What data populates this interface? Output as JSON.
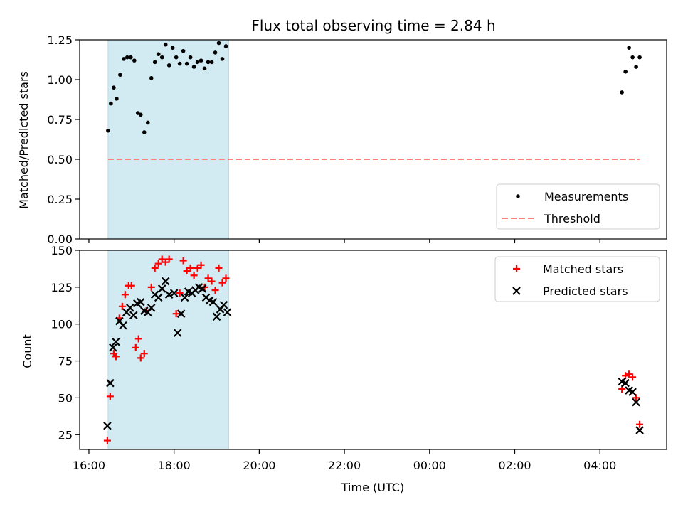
{
  "chart_data": [
    {
      "type": "scatter",
      "title": "Flux total observing time = 2.84 h",
      "xlabel": "",
      "ylabel": "Matched/Predicted stars",
      "ylim": [
        0.0,
        1.25
      ],
      "yticks": [
        "0.00",
        "0.25",
        "0.50",
        "0.75",
        "1.00",
        "1.25"
      ],
      "legend_position": "lower-right",
      "shaded_span": {
        "x_start": "16:27",
        "x_end": "19:17",
        "color": "#add8e6"
      },
      "series": [
        {
          "name": "Measurements",
          "marker": "dot",
          "color": "#000000",
          "points": [
            [
              "16:27",
              0.68
            ],
            [
              "16:31",
              0.85
            ],
            [
              "16:35",
              0.95
            ],
            [
              "16:39",
              0.88
            ],
            [
              "16:44",
              1.03
            ],
            [
              "16:49",
              1.13
            ],
            [
              "16:54",
              1.14
            ],
            [
              "16:59",
              1.14
            ],
            [
              "17:04",
              1.12
            ],
            [
              "17:09",
              0.79
            ],
            [
              "17:13",
              0.78
            ],
            [
              "17:18",
              0.67
            ],
            [
              "17:23",
              0.73
            ],
            [
              "17:28",
              1.01
            ],
            [
              "17:33",
              1.11
            ],
            [
              "17:38",
              1.16
            ],
            [
              "17:43",
              1.14
            ],
            [
              "17:48",
              1.22
            ],
            [
              "17:53",
              1.09
            ],
            [
              "17:58",
              1.2
            ],
            [
              "18:03",
              1.14
            ],
            [
              "18:08",
              1.1
            ],
            [
              "18:13",
              1.18
            ],
            [
              "18:18",
              1.1
            ],
            [
              "18:23",
              1.14
            ],
            [
              "18:28",
              1.08
            ],
            [
              "18:33",
              1.11
            ],
            [
              "18:38",
              1.12
            ],
            [
              "18:43",
              1.07
            ],
            [
              "18:48",
              1.11
            ],
            [
              "18:53",
              1.11
            ],
            [
              "18:58",
              1.17
            ],
            [
              "19:03",
              1.23
            ],
            [
              "19:08",
              1.13
            ],
            [
              "19:13",
              1.21
            ],
            [
              "04:31",
              0.92
            ],
            [
              "04:36",
              1.05
            ],
            [
              "04:41",
              1.2
            ],
            [
              "04:46",
              1.14
            ],
            [
              "04:51",
              1.08
            ],
            [
              "04:56",
              1.14
            ]
          ]
        },
        {
          "name": "Threshold",
          "marker": "dashed-line",
          "color": "#ff7f7f",
          "points": [
            [
              "16:27",
              0.5
            ],
            [
              "04:56",
              0.5
            ]
          ]
        }
      ]
    },
    {
      "type": "scatter",
      "title": "",
      "xlabel": "Time (UTC)",
      "ylabel": "Count",
      "ylim": [
        15,
        150
      ],
      "yticks": [
        "25",
        "50",
        "75",
        "100",
        "125",
        "150"
      ],
      "xticks": [
        "16:00",
        "18:00",
        "20:00",
        "22:00",
        "00:00",
        "02:00",
        "04:00"
      ],
      "legend_position": "upper-right",
      "shaded_span": {
        "x_start": "16:27",
        "x_end": "19:17",
        "color": "#add8e6"
      },
      "series": [
        {
          "name": "Matched stars",
          "marker": "plus",
          "color": "#ff0000",
          "points": [
            [
              "16:26",
              21
            ],
            [
              "16:30",
              51
            ],
            [
              "16:35",
              80
            ],
            [
              "16:38",
              78
            ],
            [
              "16:43",
              104
            ],
            [
              "16:47",
              112
            ],
            [
              "16:51",
              120
            ],
            [
              "16:56",
              126
            ],
            [
              "17:00",
              126
            ],
            [
              "17:06",
              84
            ],
            [
              "17:10",
              90
            ],
            [
              "17:13",
              77
            ],
            [
              "17:18",
              80
            ],
            [
              "17:21",
              109
            ],
            [
              "17:28",
              125
            ],
            [
              "17:33",
              138
            ],
            [
              "17:38",
              141
            ],
            [
              "17:43",
              144
            ],
            [
              "17:48",
              142
            ],
            [
              "17:53",
              144
            ],
            [
              "18:03",
              107
            ],
            [
              "18:08",
              121
            ],
            [
              "18:13",
              143
            ],
            [
              "18:18",
              136
            ],
            [
              "18:23",
              138
            ],
            [
              "18:28",
              133
            ],
            [
              "18:33",
              138
            ],
            [
              "18:38",
              140
            ],
            [
              "18:43",
              125
            ],
            [
              "18:48",
              131
            ],
            [
              "18:53",
              129
            ],
            [
              "18:58",
              123
            ],
            [
              "19:03",
              138
            ],
            [
              "19:08",
              128
            ],
            [
              "19:13",
              131
            ],
            [
              "04:31",
              56
            ],
            [
              "04:36",
              65
            ],
            [
              "04:41",
              66
            ],
            [
              "04:46",
              64
            ],
            [
              "04:51",
              50
            ],
            [
              "04:56",
              32
            ]
          ]
        },
        {
          "name": "Predicted stars",
          "marker": "x",
          "color": "#000000",
          "points": [
            [
              "16:26",
              31
            ],
            [
              "16:30",
              60
            ],
            [
              "16:34",
              84
            ],
            [
              "16:38",
              88
            ],
            [
              "16:43",
              102
            ],
            [
              "16:48",
              99
            ],
            [
              "16:53",
              108
            ],
            [
              "16:58",
              111
            ],
            [
              "17:03",
              106
            ],
            [
              "17:08",
              114
            ],
            [
              "17:13",
              115
            ],
            [
              "17:18",
              109
            ],
            [
              "17:23",
              108
            ],
            [
              "17:28",
              111
            ],
            [
              "17:33",
              120
            ],
            [
              "17:38",
              118
            ],
            [
              "17:43",
              124
            ],
            [
              "17:48",
              129
            ],
            [
              "17:53",
              120
            ],
            [
              "18:00",
              121
            ],
            [
              "18:05",
              94
            ],
            [
              "18:10",
              107
            ],
            [
              "18:15",
              118
            ],
            [
              "18:20",
              122
            ],
            [
              "18:25",
              121
            ],
            [
              "18:30",
              123
            ],
            [
              "18:35",
              125
            ],
            [
              "18:40",
              124
            ],
            [
              "18:45",
              118
            ],
            [
              "18:50",
              116
            ],
            [
              "18:55",
              115
            ],
            [
              "19:00",
              105
            ],
            [
              "19:05",
              110
            ],
            [
              "19:10",
              113
            ],
            [
              "19:15",
              108
            ],
            [
              "04:31",
              61
            ],
            [
              "04:36",
              60
            ],
            [
              "04:41",
              55
            ],
            [
              "04:46",
              54
            ],
            [
              "04:51",
              47
            ],
            [
              "04:56",
              28
            ]
          ]
        }
      ]
    }
  ]
}
